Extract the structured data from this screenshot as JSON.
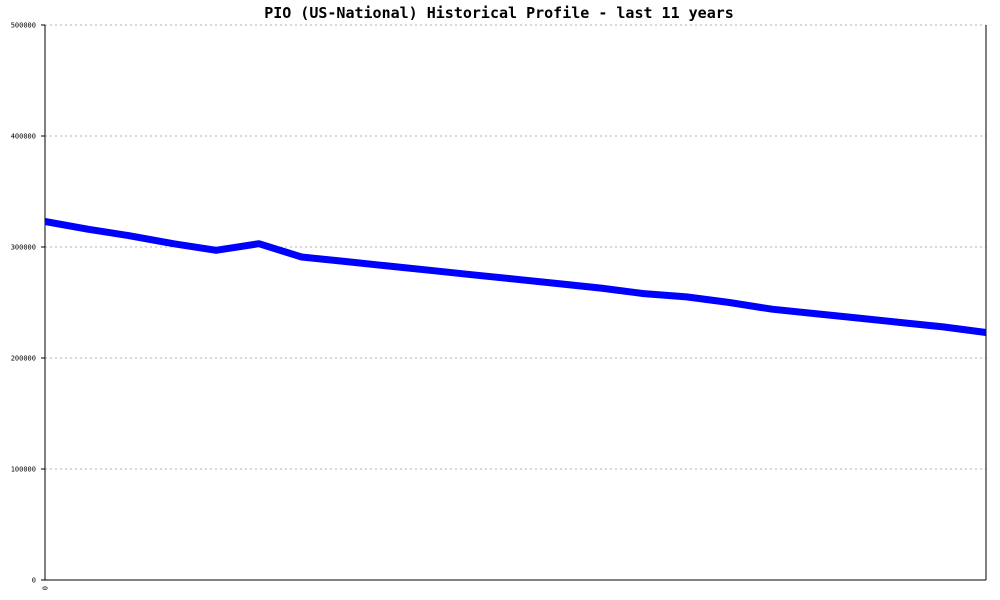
{
  "chart_data": {
    "type": "line",
    "title": "PIO (US-National) Historical Profile - last 11 years",
    "xlabel": "",
    "ylabel": "",
    "ylim": [
      0,
      500000
    ],
    "y_ticks": [
      "0",
      "100000",
      "200000",
      "300000",
      "400000",
      "500000"
    ],
    "x_ticks": [
      "0"
    ],
    "grid": true,
    "line_color": "#0000ff",
    "x": [
      0,
      1,
      2,
      3,
      4,
      5,
      6,
      7,
      8,
      9,
      10,
      11,
      12,
      13,
      14,
      15,
      16,
      17,
      18,
      19,
      20,
      21,
      22
    ],
    "series": [
      {
        "values": [
          323000,
          316000,
          310000,
          303000,
          297000,
          303000,
          291000,
          287000,
          283000,
          279000,
          275000,
          271000,
          267000,
          263000,
          258000,
          255000,
          250000,
          244000,
          240000,
          236000,
          232000,
          228000,
          223000
        ]
      }
    ]
  }
}
